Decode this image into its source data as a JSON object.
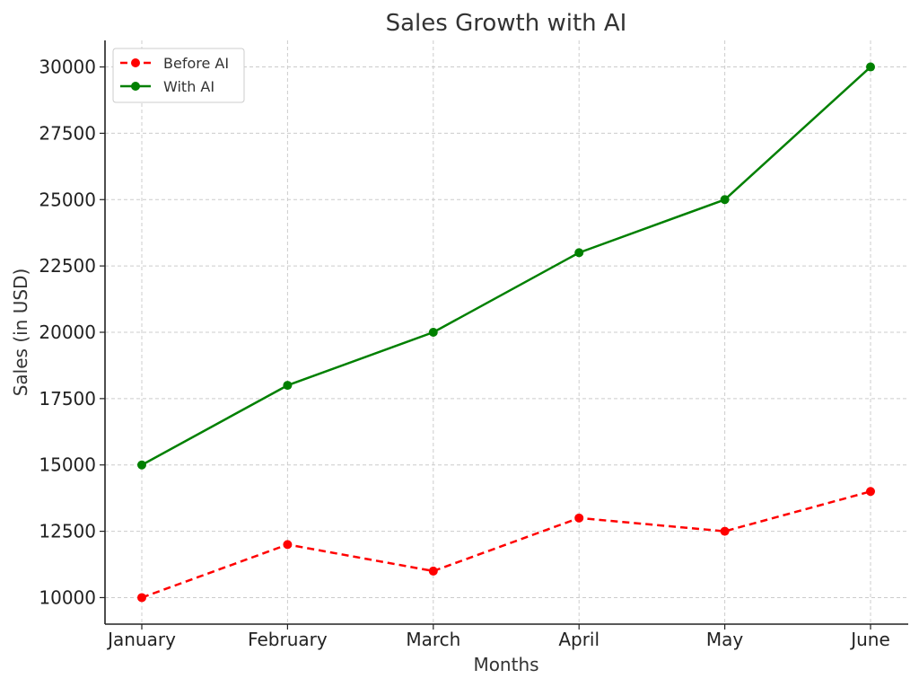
{
  "chart_data": {
    "type": "line",
    "title": "Sales Growth with AI",
    "xlabel": "Months",
    "ylabel": "Sales (in USD)",
    "categories": [
      "January",
      "February",
      "March",
      "April",
      "May",
      "June"
    ],
    "ylim": [
      9000,
      31000
    ],
    "yticks": [
      10000,
      12500,
      15000,
      17500,
      20000,
      22500,
      25000,
      27500,
      30000
    ],
    "grid": true,
    "legend_position": "top-left",
    "series": [
      {
        "name": "Before AI",
        "values": [
          10000,
          12000,
          11000,
          13000,
          12500,
          14000
        ],
        "color": "#ff0000",
        "line_style": "dashed",
        "marker": "circle"
      },
      {
        "name": "With AI",
        "values": [
          15000,
          18000,
          20000,
          23000,
          25000,
          30000
        ],
        "color": "#008000",
        "line_style": "solid",
        "marker": "circle"
      }
    ]
  }
}
